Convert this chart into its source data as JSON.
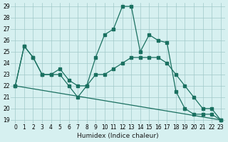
{
  "line1_x": [
    0,
    1,
    2,
    3,
    4,
    5,
    6,
    7,
    8,
    9,
    10,
    11,
    12,
    13,
    14,
    15,
    16,
    17,
    18,
    19,
    20,
    21,
    22,
    23
  ],
  "line1_y": [
    22,
    25.5,
    24.5,
    23,
    23,
    23,
    22,
    21,
    22,
    24.5,
    26.5,
    27,
    29,
    29,
    25,
    26.5,
    26,
    25.8,
    21.5,
    20,
    19.5,
    19.5,
    19.5,
    19
  ],
  "line2_x": [
    0,
    1,
    2,
    3,
    4,
    5,
    6,
    7,
    8,
    9,
    10,
    11,
    12,
    13,
    14,
    15,
    16,
    17,
    18,
    19,
    20,
    21,
    22,
    23
  ],
  "line2_y": [
    22,
    25.5,
    24.5,
    23,
    23,
    23.5,
    22.5,
    22,
    22,
    23,
    23,
    23.5,
    24,
    24.5,
    24.5,
    24.5,
    24.5,
    24,
    23,
    22,
    21,
    20,
    20,
    19
  ],
  "line3_x": [
    0,
    23
  ],
  "line3_y": [
    22,
    19
  ],
  "color": "#1a7060",
  "bg_color": "#d6f0f0",
  "xlabel": "Humidex (Indice chaleur)",
  "ylim": [
    19,
    29
  ],
  "xlim": [
    0,
    23
  ],
  "yticks": [
    19,
    20,
    21,
    22,
    23,
    24,
    25,
    26,
    27,
    28,
    29
  ],
  "xticks": [
    0,
    1,
    2,
    3,
    4,
    5,
    6,
    7,
    8,
    9,
    10,
    11,
    12,
    13,
    14,
    15,
    16,
    17,
    18,
    19,
    20,
    21,
    22,
    23
  ]
}
